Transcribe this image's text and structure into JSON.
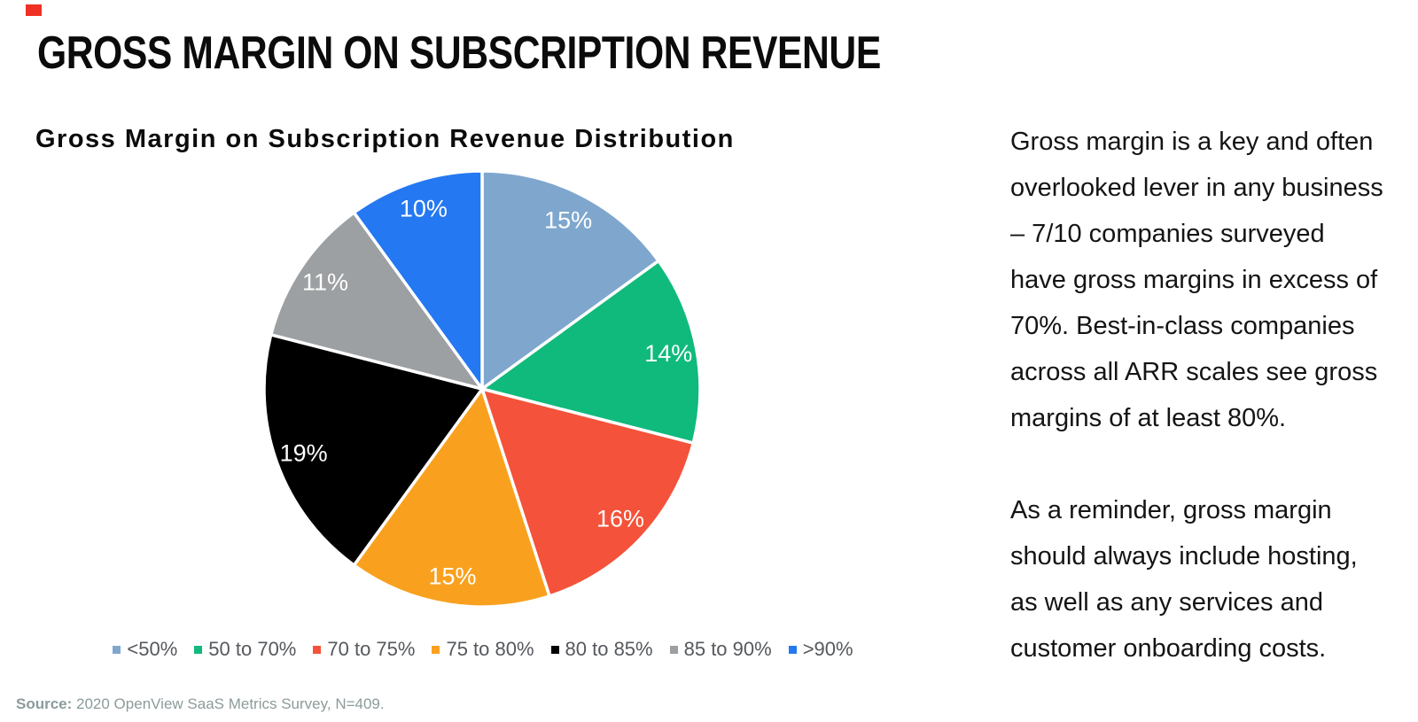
{
  "page_title": "GROSS MARGIN ON SUBSCRIPTION REVENUE",
  "brand": {
    "accent_color": "#ee3124"
  },
  "chart_data": {
    "type": "pie",
    "title": "Gross Margin on Subscription Revenue Distribution",
    "unit": "%",
    "start_angle_deg": 0,
    "direction": "clockwise",
    "legend_position": "bottom",
    "data_label_color": "#ffffff",
    "slices": [
      {
        "label": "<50%",
        "value": 15,
        "data_label": "15%",
        "color": "#7fa7ce"
      },
      {
        "label": "50 to 70%",
        "value": 14,
        "data_label": "14%",
        "color": "#10ba7d"
      },
      {
        "label": "70 to 75%",
        "value": 16,
        "data_label": "16%",
        "color": "#f4523a"
      },
      {
        "label": "75 to 80%",
        "value": 15,
        "data_label": "15%",
        "color": "#f9a11e"
      },
      {
        "label": "80 to 85%",
        "value": 19,
        "data_label": "19%",
        "color": "#000000"
      },
      {
        "label": "85 to 90%",
        "value": 11,
        "data_label": "11%",
        "color": "#9da0a2"
      },
      {
        "label": ">90%",
        "value": 10,
        "data_label": "10%",
        "color": "#2478f2"
      }
    ]
  },
  "commentary": {
    "paragraph1": "Gross margin is a key and often\noverlooked lever in any business\n– 7/10 companies surveyed\nhave gross margins in excess of\n70%. Best-in-class companies\nacross all ARR scales see gross\nmargins of at least 80%.",
    "paragraph2": "As a reminder, gross margin\nshould always include hosting,\nas well as any services and\ncustomer onboarding costs."
  },
  "source": {
    "label": "Source:",
    "text": " 2020 OpenView SaaS Metrics Survey, N=409."
  }
}
